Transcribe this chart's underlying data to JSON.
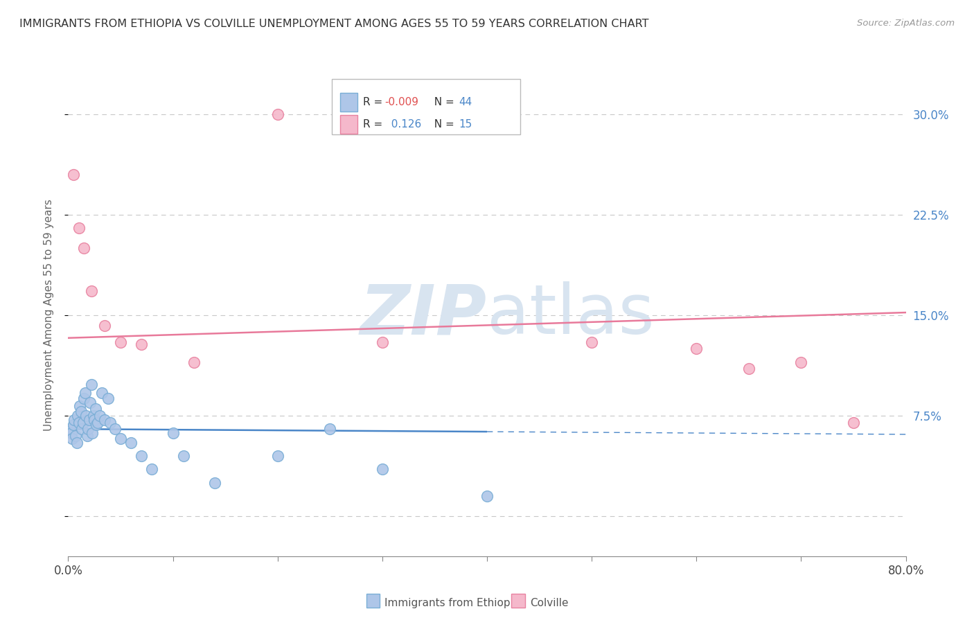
{
  "title": "IMMIGRANTS FROM ETHIOPIA VS COLVILLE UNEMPLOYMENT AMONG AGES 55 TO 59 YEARS CORRELATION CHART",
  "source": "Source: ZipAtlas.com",
  "ylabel": "Unemployment Among Ages 55 to 59 years",
  "xlim": [
    0,
    80
  ],
  "ylim": [
    -3,
    33
  ],
  "yticks": [
    0,
    7.5,
    15.0,
    22.5,
    30.0
  ],
  "xticks": [
    0,
    10,
    20,
    30,
    40,
    50,
    60,
    70,
    80
  ],
  "legend_R1": "-0.009",
  "legend_N1": "44",
  "legend_R2": "0.126",
  "legend_N2": "15",
  "blue_color": "#aec6e8",
  "blue_edge": "#7aaed6",
  "pink_color": "#f5b8cb",
  "pink_edge": "#e882a0",
  "blue_line_color": "#4a86c8",
  "pink_line_color": "#e8799a",
  "watermark_color": "#d8e4f0",
  "blue_scatter_x": [
    0.2,
    0.3,
    0.4,
    0.5,
    0.6,
    0.7,
    0.8,
    0.9,
    1.0,
    1.1,
    1.2,
    1.3,
    1.4,
    1.5,
    1.6,
    1.7,
    1.8,
    1.9,
    2.0,
    2.1,
    2.2,
    2.3,
    2.4,
    2.5,
    2.6,
    2.7,
    2.8,
    3.0,
    3.2,
    3.5,
    3.8,
    4.0,
    4.5,
    5.0,
    6.0,
    7.0,
    8.0,
    10.0,
    11.0,
    14.0,
    20.0,
    25.0,
    30.0,
    40.0
  ],
  "blue_scatter_y": [
    6.5,
    6.2,
    5.8,
    6.8,
    7.2,
    6.0,
    5.5,
    7.5,
    7.0,
    8.2,
    7.8,
    6.5,
    7.0,
    8.8,
    9.2,
    7.5,
    6.0,
    6.5,
    7.2,
    8.5,
    9.8,
    6.2,
    7.5,
    7.2,
    8.0,
    6.8,
    7.0,
    7.5,
    9.2,
    7.2,
    8.8,
    7.0,
    6.5,
    5.8,
    5.5,
    4.5,
    3.5,
    6.2,
    4.5,
    2.5,
    4.5,
    6.5,
    3.5,
    1.5
  ],
  "pink_scatter_x": [
    0.5,
    1.0,
    1.5,
    2.2,
    3.5,
    5.0,
    7.0,
    12.0,
    20.0,
    30.0,
    50.0,
    60.0,
    65.0,
    70.0,
    75.0
  ],
  "pink_scatter_y": [
    25.5,
    21.5,
    20.0,
    16.8,
    14.2,
    13.0,
    12.8,
    11.5,
    30.0,
    13.0,
    13.0,
    12.5,
    11.0,
    11.5,
    7.0
  ],
  "blue_trend_x_end": 40,
  "blue_trend_y_start": 6.5,
  "blue_trend_y_end": 6.3,
  "pink_trend_y_start": 13.3,
  "pink_trend_y_end": 15.2,
  "background_color": "#ffffff",
  "grid_color": "#c8c8c8",
  "title_color": "#333333",
  "axis_label_color": "#666666",
  "right_ytick_color": "#4a86c8"
}
